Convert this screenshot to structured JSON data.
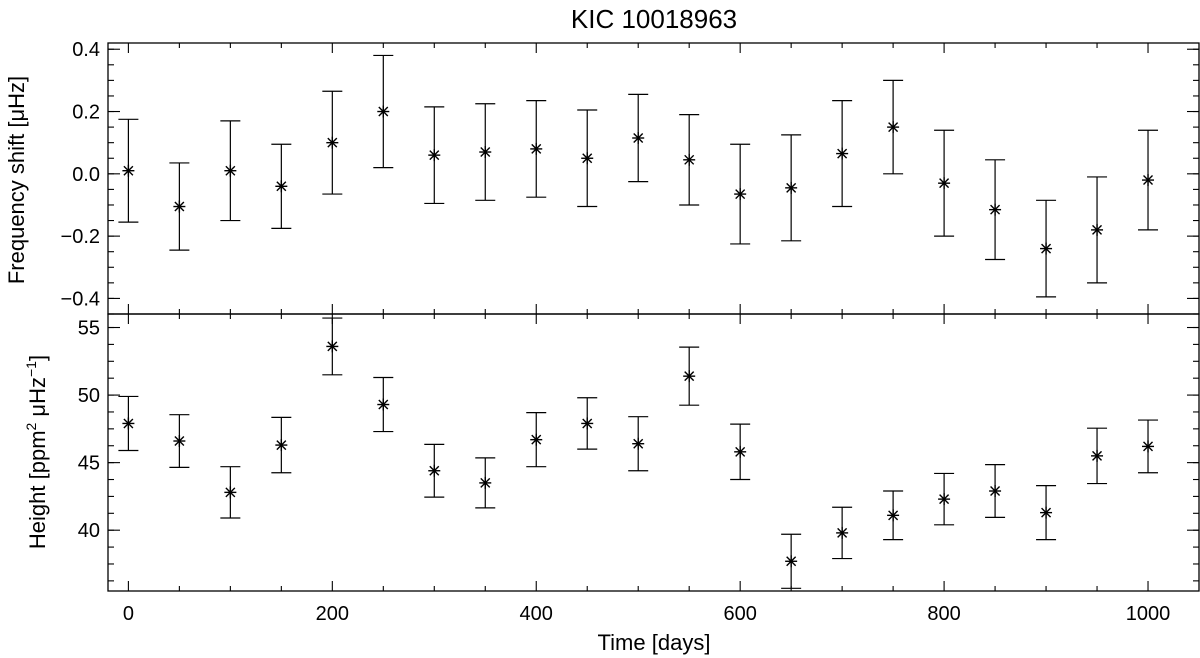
{
  "chart_data": {
    "type": "scatter",
    "title": "KIC 10018963",
    "xlabel": "Time [days]",
    "xlim": [
      -20,
      1050
    ],
    "xticks": [
      0,
      200,
      400,
      600,
      800,
      1000
    ],
    "x": [
      0,
      50,
      100,
      150,
      200,
      250,
      300,
      350,
      400,
      450,
      500,
      550,
      600,
      650,
      700,
      750,
      800,
      850,
      900,
      950,
      1000
    ],
    "panels": [
      {
        "ylabel": "Frequency shift [μHz]",
        "ylim": [
          -0.45,
          0.42
        ],
        "yticks": [
          -0.4,
          -0.2,
          0.0,
          0.2,
          0.4
        ],
        "ytick_labels": [
          "−0.4",
          "−0.2",
          "0.0",
          "0.2",
          "0.4"
        ],
        "y": [
          0.01,
          -0.105,
          0.01,
          -0.04,
          0.1,
          0.2,
          0.06,
          0.07,
          0.08,
          0.05,
          0.115,
          0.045,
          -0.065,
          -0.045,
          0.065,
          0.15,
          -0.03,
          -0.115,
          -0.24,
          -0.18,
          -0.02
        ],
        "yerr": [
          0.165,
          0.14,
          0.16,
          0.135,
          0.165,
          0.18,
          0.155,
          0.155,
          0.155,
          0.155,
          0.14,
          0.145,
          0.16,
          0.17,
          0.17,
          0.15,
          0.17,
          0.16,
          0.155,
          0.17,
          0.16
        ]
      },
      {
        "ylabel_main": "Height [ppm",
        "ylabel_sup1": "2",
        "ylabel_mid": " μHz",
        "ylabel_sup2": "−1",
        "ylabel_end": "]",
        "ylim": [
          35.5,
          56
        ],
        "yticks": [
          40,
          45,
          50,
          55
        ],
        "ytick_labels": [
          "40",
          "45",
          "50",
          "55"
        ],
        "y": [
          47.9,
          46.6,
          42.8,
          46.3,
          53.6,
          49.3,
          44.4,
          43.5,
          46.7,
          47.9,
          46.4,
          51.4,
          45.8,
          37.7,
          39.8,
          41.1,
          42.3,
          42.9,
          41.3,
          45.5,
          46.2
        ],
        "yerr": [
          2.0,
          1.95,
          1.9,
          2.05,
          2.1,
          2.0,
          1.95,
          1.85,
          2.0,
          1.9,
          2.0,
          2.15,
          2.05,
          2.0,
          1.9,
          1.8,
          1.9,
          1.95,
          2.0,
          2.05,
          1.95
        ]
      }
    ]
  }
}
